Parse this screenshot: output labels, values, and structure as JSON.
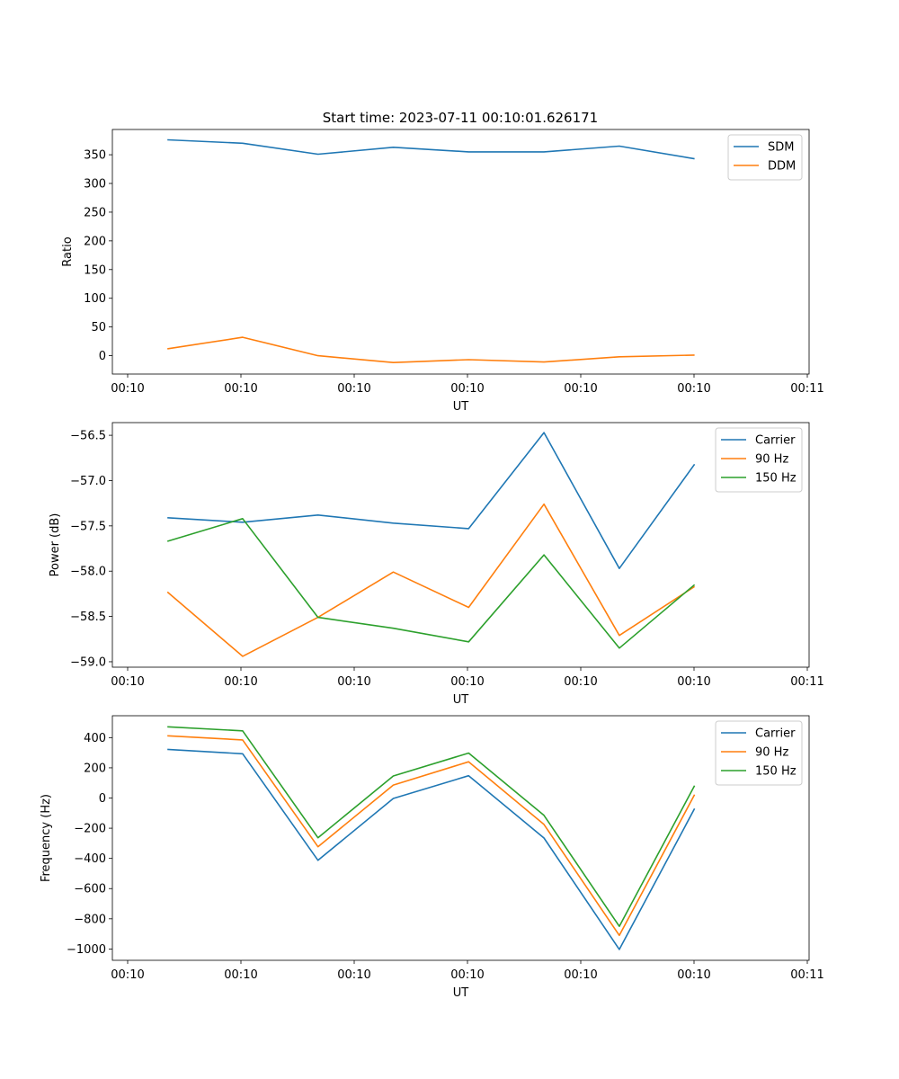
{
  "chart_data": [
    {
      "type": "line",
      "title": "Start time: 2023-07-11 00:10:01.626171",
      "xlabel": "UT",
      "ylabel": "Ratio",
      "xticks": [
        "00:10",
        "00:10",
        "00:10",
        "00:10",
        "00:10",
        "00:10",
        "00:11"
      ],
      "x": [
        1,
        2,
        3,
        4,
        5,
        6,
        7,
        8
      ],
      "xlim": [
        0.27,
        9.52
      ],
      "ylim": [
        -32,
        394
      ],
      "yticks": [
        0,
        50,
        100,
        150,
        200,
        250,
        300,
        350
      ],
      "legend": "top-right",
      "series": [
        {
          "name": "SDM",
          "color": "#1f77b4",
          "values": [
            376,
            370,
            351,
            363,
            355,
            355,
            365,
            343
          ]
        },
        {
          "name": "DDM",
          "color": "#ff7f0e",
          "values": [
            12,
            32,
            0,
            -12,
            -7,
            -11,
            -2,
            1
          ]
        }
      ]
    },
    {
      "type": "line",
      "title": "",
      "xlabel": "UT",
      "ylabel": "Power (dB)",
      "xticks": [
        "00:10",
        "00:10",
        "00:10",
        "00:10",
        "00:10",
        "00:10",
        "00:11"
      ],
      "x": [
        1,
        2,
        3,
        4,
        5,
        6,
        7,
        8
      ],
      "xlim": [
        0.27,
        9.52
      ],
      "ylim": [
        -59.06,
        -56.36
      ],
      "yticks": [
        -59.0,
        -58.5,
        -58.0,
        -57.5,
        -57.0,
        -56.5
      ],
      "legend": "top-right",
      "series": [
        {
          "name": "Carrier",
          "color": "#1f77b4",
          "values": [
            -57.41,
            -57.46,
            -57.38,
            -57.47,
            -57.53,
            -56.47,
            -57.97,
            -56.82
          ]
        },
        {
          "name": "90 Hz",
          "color": "#ff7f0e",
          "values": [
            -58.23,
            -58.94,
            -58.51,
            -58.01,
            -58.4,
            -57.26,
            -58.71,
            -58.17
          ]
        },
        {
          "name": "150 Hz",
          "color": "#2ca02c",
          "values": [
            -57.67,
            -57.42,
            -58.51,
            -58.63,
            -58.78,
            -57.82,
            -58.85,
            -58.15
          ]
        }
      ]
    },
    {
      "type": "line",
      "title": "",
      "xlabel": "UT",
      "ylabel": "Frequency (Hz)",
      "xticks": [
        "00:10",
        "00:10",
        "00:10",
        "00:10",
        "00:10",
        "00:10",
        "00:11"
      ],
      "x": [
        1,
        2,
        3,
        4,
        5,
        6,
        7,
        8
      ],
      "xlim": [
        0.27,
        9.52
      ],
      "ylim": [
        -1075,
        545
      ],
      "yticks": [
        -1000,
        -800,
        -600,
        -400,
        -200,
        0,
        200,
        400
      ],
      "legend": "top-right",
      "series": [
        {
          "name": "Carrier",
          "color": "#1f77b4",
          "values": [
            322,
            293,
            -413,
            -3,
            148,
            -265,
            -1003,
            -70
          ]
        },
        {
          "name": "90 Hz",
          "color": "#ff7f0e",
          "values": [
            412,
            385,
            -323,
            86,
            240,
            -175,
            -910,
            22
          ]
        },
        {
          "name": "150 Hz",
          "color": "#2ca02c",
          "values": [
            472,
            445,
            -263,
            146,
            298,
            -115,
            -850,
            82
          ]
        }
      ]
    }
  ]
}
